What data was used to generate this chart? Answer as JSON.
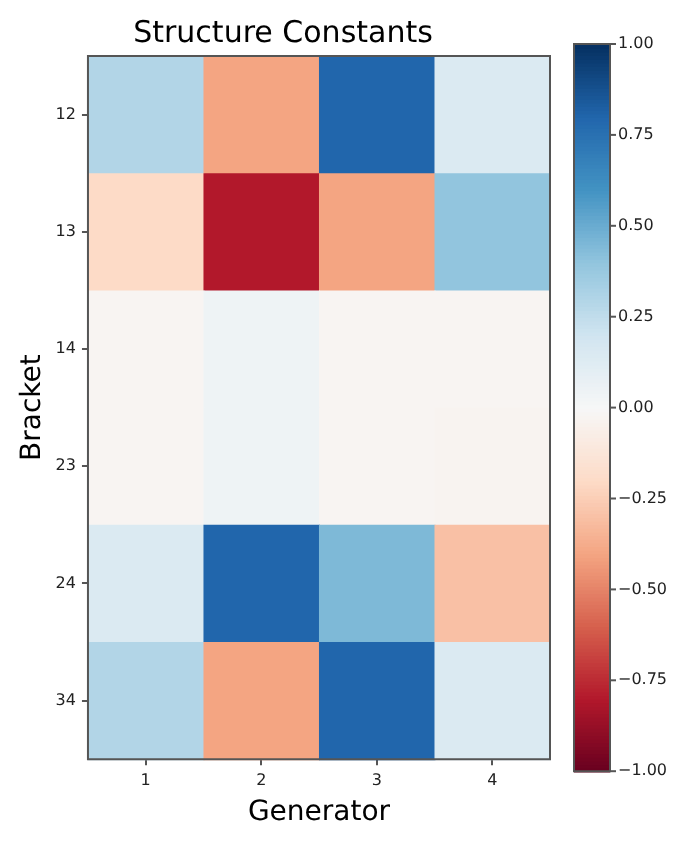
{
  "chart_data": {
    "type": "heatmap",
    "title": "Structure Constants",
    "xlabel": "Generator",
    "ylabel": "Bracket",
    "categories": [
      "1",
      "2",
      "3",
      "4"
    ],
    "y_categories": [
      "12",
      "13",
      "14",
      "23",
      "24",
      "34"
    ],
    "cells": [
      [
        0.3,
        -0.4,
        0.8,
        0.15
      ],
      [
        -0.2,
        -0.8,
        -0.4,
        0.4
      ],
      [
        -0.02,
        0.05,
        -0.02,
        -0.02
      ],
      [
        -0.02,
        0.05,
        -0.02,
        -0.03
      ],
      [
        0.15,
        0.8,
        0.45,
        -0.3
      ],
      [
        0.3,
        -0.4,
        0.8,
        0.15
      ]
    ],
    "clim": [
      -1,
      1
    ],
    "cticks": [
      {
        "value": 1,
        "label": "1.00"
      },
      {
        "value": 0.75,
        "label": "0.75"
      },
      {
        "value": 0.5,
        "label": "0.50"
      },
      {
        "value": 0.25,
        "label": "0.25"
      },
      {
        "value": 0,
        "label": "0.00"
      },
      {
        "value": -0.25,
        "label": "−0.25"
      },
      {
        "value": -0.5,
        "label": "−0.50"
      },
      {
        "value": -0.75,
        "label": "−0.75"
      },
      {
        "value": -1,
        "label": "−1.00"
      }
    ]
  }
}
